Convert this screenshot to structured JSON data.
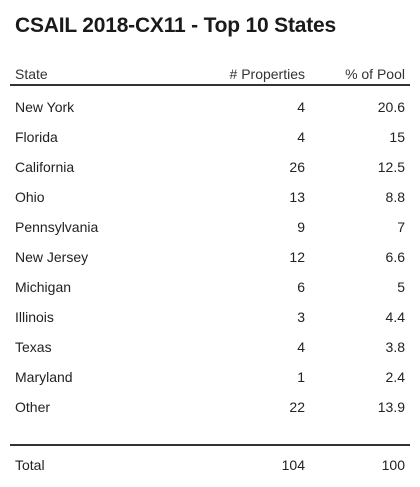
{
  "title": "CSAIL 2018-CX11 - Top 10 States",
  "columns": {
    "state": "State",
    "properties": "# Properties",
    "pct_pool": "% of Pool"
  },
  "rows": [
    {
      "state": "New York",
      "properties": "4",
      "pct": "20.6"
    },
    {
      "state": "Florida",
      "properties": "4",
      "pct": "15"
    },
    {
      "state": "California",
      "properties": "26",
      "pct": "12.5"
    },
    {
      "state": "Ohio",
      "properties": "13",
      "pct": "8.8"
    },
    {
      "state": "Pennsylvania",
      "properties": "9",
      "pct": "7"
    },
    {
      "state": "New Jersey",
      "properties": "12",
      "pct": "6.6"
    },
    {
      "state": "Michigan",
      "properties": "6",
      "pct": "5"
    },
    {
      "state": "Illinois",
      "properties": "3",
      "pct": "4.4"
    },
    {
      "state": "Texas",
      "properties": "4",
      "pct": "3.8"
    },
    {
      "state": "Maryland",
      "properties": "1",
      "pct": "2.4"
    },
    {
      "state": "Other",
      "properties": "22",
      "pct": "13.9"
    }
  ],
  "total": {
    "label": "Total",
    "properties": "104",
    "pct": "100"
  }
}
